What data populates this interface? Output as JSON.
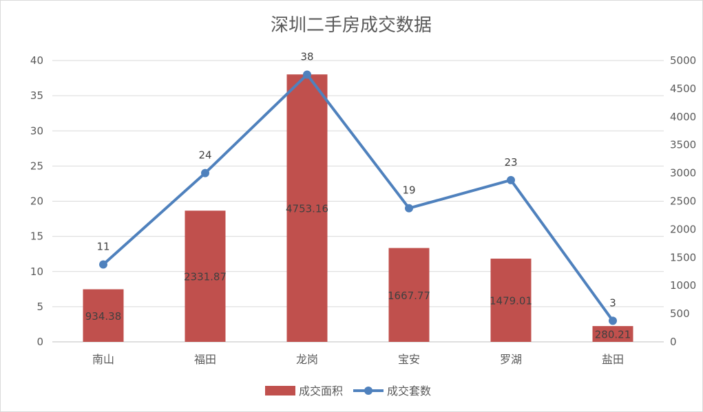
{
  "chart_data": {
    "type": "bar",
    "title": "深圳二手房成交数据",
    "categories": [
      "南山",
      "福田",
      "龙岗",
      "宝安",
      "罗湖",
      "盐田"
    ],
    "series": [
      {
        "name": "成交面积",
        "kind": "bar",
        "axis": "right",
        "color": "#c0504d",
        "values": [
          934.38,
          2331.87,
          4753.16,
          1667.77,
          1479.01,
          280.21
        ],
        "labels": [
          "934.38",
          "2331.87",
          "4753.16",
          "1667.77",
          "1479.01",
          "280.21"
        ]
      },
      {
        "name": "成交套数",
        "kind": "line",
        "axis": "left",
        "color": "#4f81bd",
        "values": [
          11,
          24,
          38,
          19,
          23,
          3
        ],
        "labels": [
          "11",
          "24",
          "38",
          "19",
          "23",
          "3"
        ]
      }
    ],
    "y_left": {
      "min": 0,
      "max": 40,
      "step": 5,
      "ticks": [
        "0",
        "5",
        "10",
        "15",
        "20",
        "25",
        "30",
        "35",
        "40"
      ]
    },
    "y_right": {
      "min": 0,
      "max": 5000,
      "step": 500,
      "ticks": [
        "0",
        "500",
        "1000",
        "1500",
        "2000",
        "2500",
        "3000",
        "3500",
        "4000",
        "4500",
        "5000"
      ]
    },
    "grid": true,
    "legend": "bottom"
  }
}
